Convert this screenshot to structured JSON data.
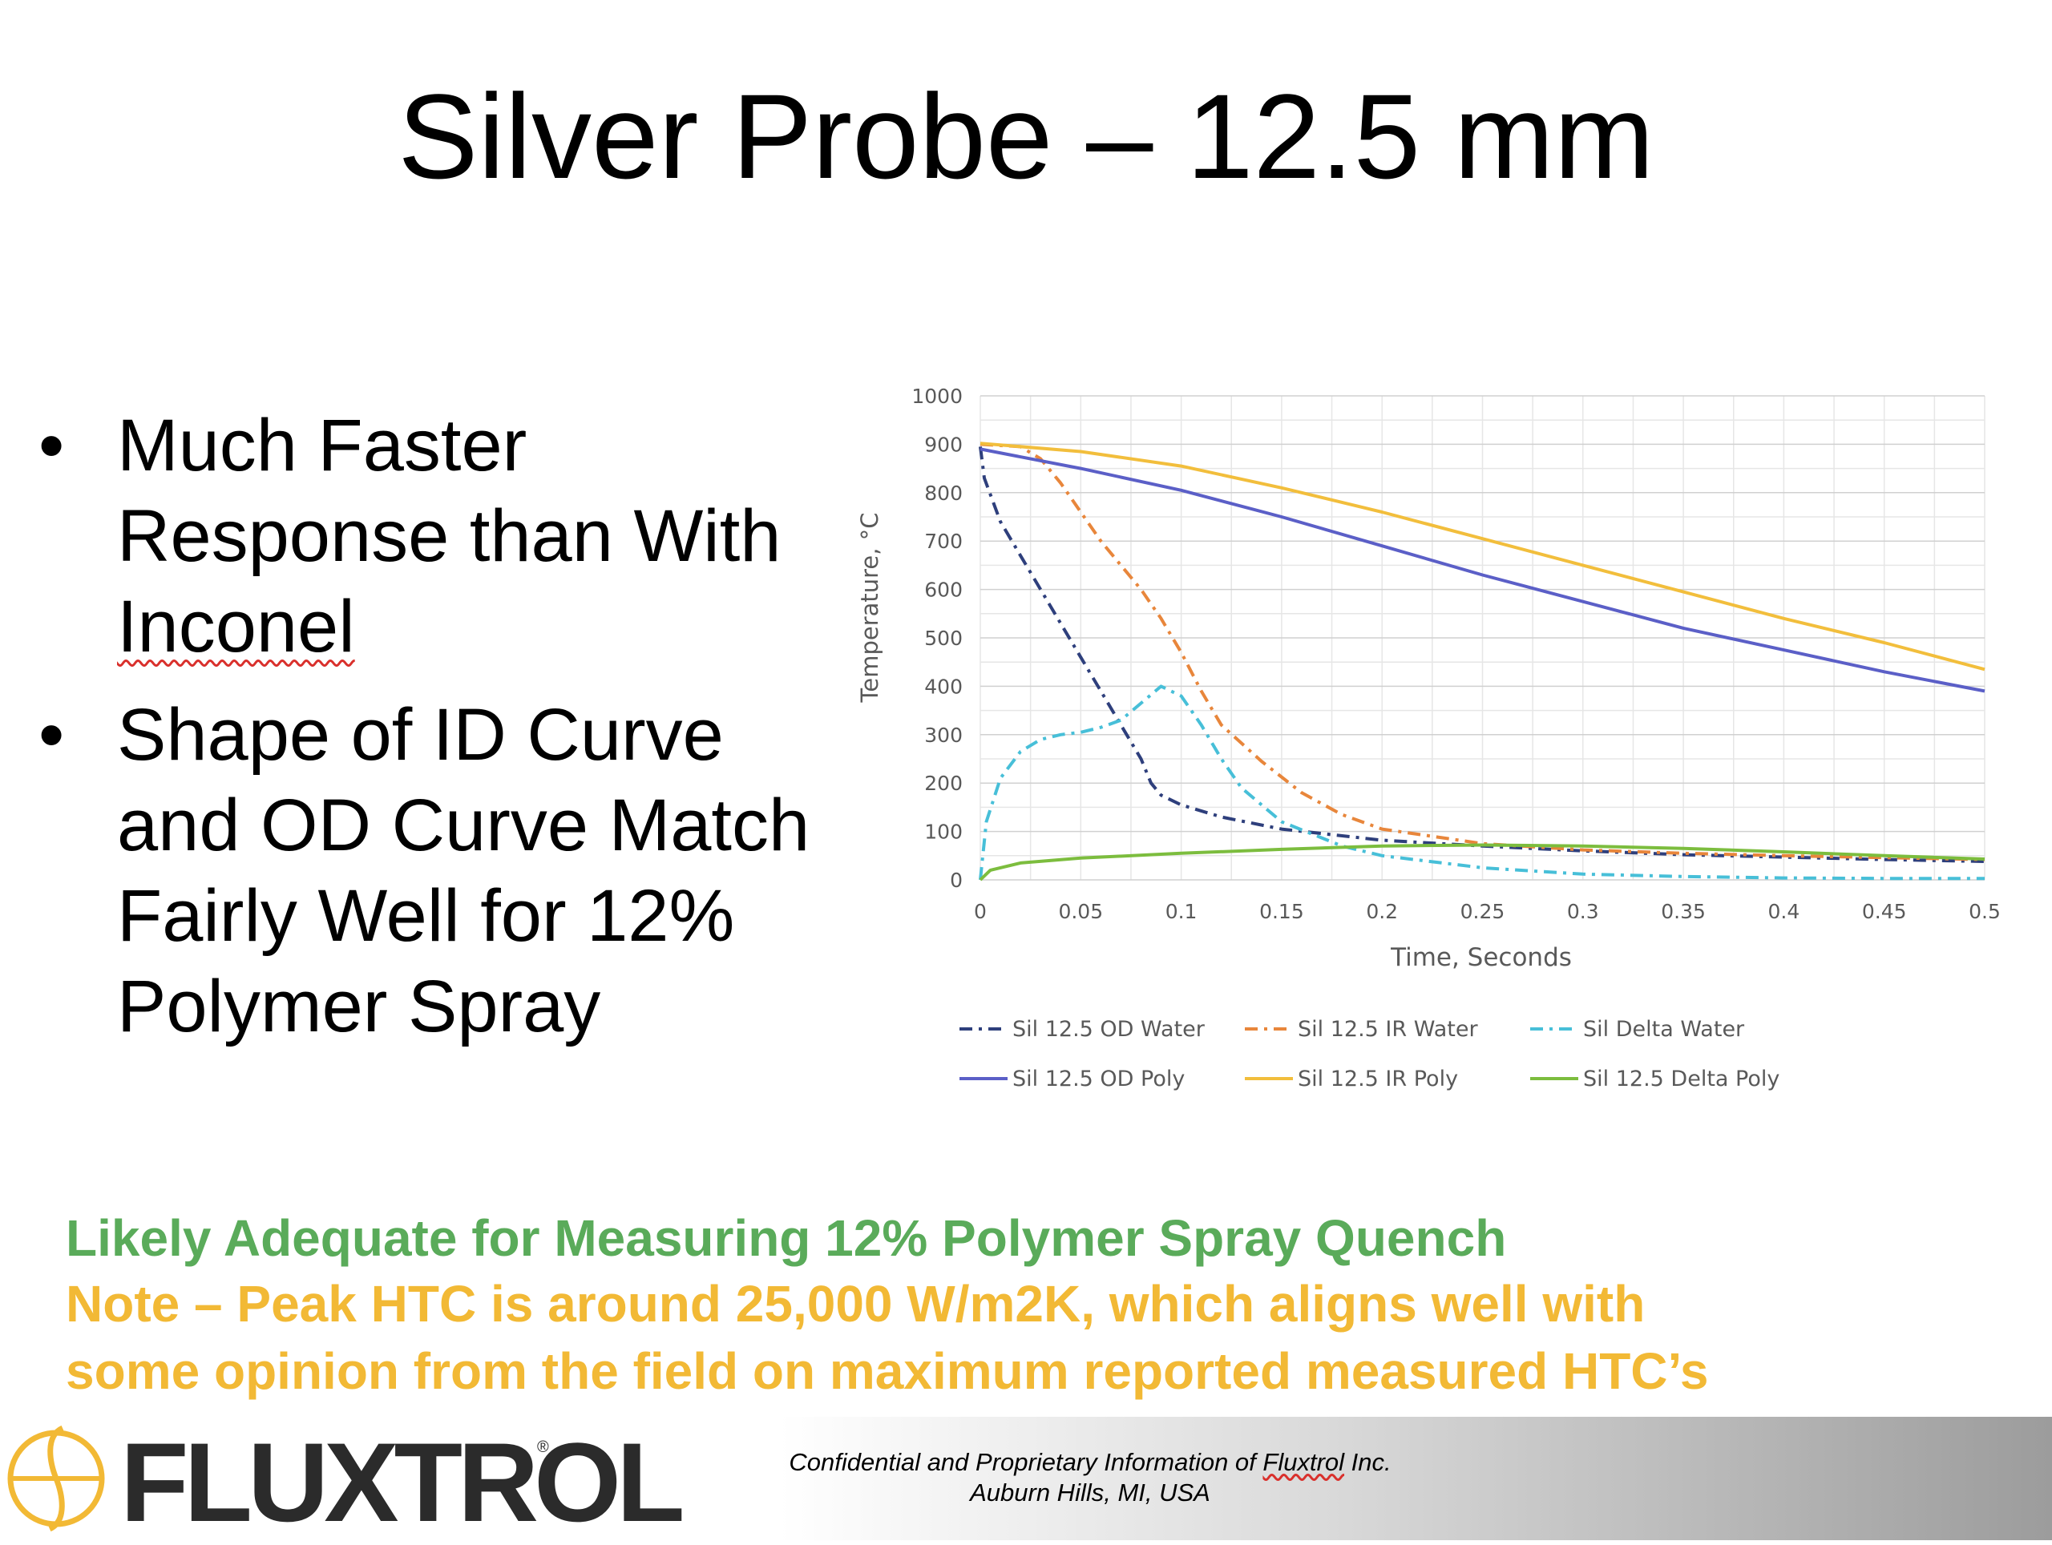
{
  "slide": {
    "title": "Silver Probe – 12.5 mm",
    "bullets": [
      {
        "before": "Much Faster Response than With ",
        "flagged": "Inconel",
        "after": ""
      },
      {
        "before": "Shape of ID Curve and OD Curve Match Fairly Well for 12% Polymer Spray",
        "flagged": "",
        "after": ""
      }
    ],
    "bullet_glyph": "•",
    "note_green": "Likely Adequate for Measuring 12% Polymer Spray Quench",
    "note_yellow_line1": "Note – Peak HTC is around 25,000 W/m2K, which aligns well with",
    "note_yellow_line2": "some opinion from the field on maximum reported measured HTC’s",
    "colors": {
      "green_note": "#5aab5a",
      "yellow_note": "#f2b935",
      "logo_gold": "#f2b935",
      "logo_dark": "#2b2b2b"
    }
  },
  "footer": {
    "logo_text": "FLUXTROL",
    "logo_reg": "®",
    "confidential_before": "Confidential and Proprietary Information of ",
    "confidential_flagged": "Fluxtrol",
    "confidential_after": " Inc.",
    "location": "Auburn Hills, MI, USA"
  },
  "chart_data": {
    "type": "line",
    "title": "",
    "xlabel": "Time, Seconds",
    "ylabel": "Temperature, °C",
    "xlim": [
      0,
      0.5
    ],
    "ylim": [
      0,
      1000
    ],
    "xticks": [
      0,
      0.05,
      0.1,
      0.15,
      0.2,
      0.25,
      0.3,
      0.35,
      0.4,
      0.45,
      0.5
    ],
    "yticks": [
      0,
      100,
      200,
      300,
      400,
      500,
      600,
      700,
      800,
      900,
      1000
    ],
    "grid": true,
    "legend_position": "bottom",
    "series": [
      {
        "name": "Sil 12.5 OD Water",
        "color": "#2e3f7c",
        "dash": "dash-dot",
        "points": [
          [
            0,
            895
          ],
          [
            0.002,
            830
          ],
          [
            0.01,
            740
          ],
          [
            0.02,
            670
          ],
          [
            0.03,
            600
          ],
          [
            0.04,
            530
          ],
          [
            0.05,
            460
          ],
          [
            0.06,
            390
          ],
          [
            0.07,
            320
          ],
          [
            0.08,
            250
          ],
          [
            0.085,
            200
          ],
          [
            0.09,
            175
          ],
          [
            0.1,
            155
          ],
          [
            0.12,
            130
          ],
          [
            0.15,
            105
          ],
          [
            0.2,
            82
          ],
          [
            0.25,
            70
          ],
          [
            0.3,
            60
          ],
          [
            0.35,
            52
          ],
          [
            0.4,
            47
          ],
          [
            0.45,
            42
          ],
          [
            0.5,
            38
          ]
        ]
      },
      {
        "name": "Sil 12.5 IR Water",
        "color": "#e8863b",
        "dash": "dash-dot",
        "points": [
          [
            0,
            900
          ],
          [
            0.02,
            895
          ],
          [
            0.03,
            870
          ],
          [
            0.04,
            820
          ],
          [
            0.05,
            760
          ],
          [
            0.06,
            700
          ],
          [
            0.07,
            650
          ],
          [
            0.08,
            600
          ],
          [
            0.09,
            540
          ],
          [
            0.1,
            470
          ],
          [
            0.11,
            390
          ],
          [
            0.12,
            320
          ],
          [
            0.14,
            245
          ],
          [
            0.16,
            180
          ],
          [
            0.18,
            135
          ],
          [
            0.2,
            105
          ],
          [
            0.25,
            75
          ],
          [
            0.3,
            62
          ],
          [
            0.35,
            55
          ],
          [
            0.4,
            50
          ],
          [
            0.45,
            46
          ],
          [
            0.5,
            42
          ]
        ]
      },
      {
        "name": "Sil Delta Water",
        "color": "#47bfd8",
        "dash": "dash-dot",
        "points": [
          [
            0,
            0
          ],
          [
            0.003,
            120
          ],
          [
            0.01,
            210
          ],
          [
            0.02,
            265
          ],
          [
            0.03,
            290
          ],
          [
            0.04,
            300
          ],
          [
            0.05,
            305
          ],
          [
            0.06,
            315
          ],
          [
            0.07,
            330
          ],
          [
            0.08,
            365
          ],
          [
            0.09,
            400
          ],
          [
            0.1,
            380
          ],
          [
            0.11,
            320
          ],
          [
            0.12,
            250
          ],
          [
            0.13,
            190
          ],
          [
            0.15,
            120
          ],
          [
            0.18,
            70
          ],
          [
            0.2,
            50
          ],
          [
            0.25,
            25
          ],
          [
            0.3,
            12
          ],
          [
            0.35,
            7
          ],
          [
            0.4,
            4
          ],
          [
            0.45,
            3
          ],
          [
            0.5,
            3
          ]
        ]
      },
      {
        "name": "Sil 12.5 OD Poly",
        "color": "#5b5fc7",
        "dash": "solid",
        "points": [
          [
            0,
            890
          ],
          [
            0.05,
            850
          ],
          [
            0.1,
            805
          ],
          [
            0.15,
            750
          ],
          [
            0.2,
            690
          ],
          [
            0.25,
            630
          ],
          [
            0.3,
            575
          ],
          [
            0.35,
            520
          ],
          [
            0.4,
            475
          ],
          [
            0.45,
            430
          ],
          [
            0.5,
            390
          ]
        ]
      },
      {
        "name": "Sil 12.5 IR Poly",
        "color": "#f2be3c",
        "dash": "solid",
        "points": [
          [
            0,
            902
          ],
          [
            0.05,
            885
          ],
          [
            0.1,
            855
          ],
          [
            0.15,
            810
          ],
          [
            0.2,
            760
          ],
          [
            0.25,
            705
          ],
          [
            0.3,
            650
          ],
          [
            0.35,
            595
          ],
          [
            0.4,
            540
          ],
          [
            0.45,
            490
          ],
          [
            0.5,
            435
          ]
        ]
      },
      {
        "name": "Sil 12.5 Delta Poly",
        "color": "#7cbd3e",
        "dash": "solid",
        "points": [
          [
            0,
            0
          ],
          [
            0.005,
            20
          ],
          [
            0.02,
            35
          ],
          [
            0.05,
            45
          ],
          [
            0.1,
            55
          ],
          [
            0.15,
            63
          ],
          [
            0.2,
            70
          ],
          [
            0.25,
            72
          ],
          [
            0.3,
            70
          ],
          [
            0.35,
            65
          ],
          [
            0.4,
            58
          ],
          [
            0.45,
            50
          ],
          [
            0.5,
            43
          ]
        ]
      }
    ]
  }
}
